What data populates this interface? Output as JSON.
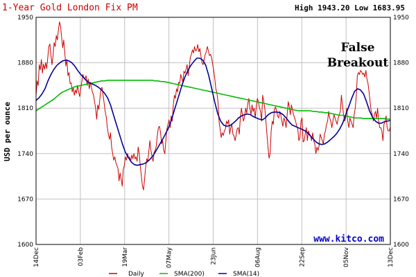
{
  "chart_data": {
    "type": "line",
    "title": "1-Year Gold London Fix PM",
    "high_low": "High 1943.20 Low 1683.95",
    "ylabel": "USD per ounce",
    "ylim": [
      1600,
      1950
    ],
    "yticks": [
      "1600",
      "1670",
      "1740",
      "1810",
      "1880",
      "1950"
    ],
    "xticks": [
      "14Dec",
      "03Feb",
      "19Mar",
      "07May",
      "23Jun",
      "06Aug",
      "22Sep",
      "05Nov",
      "13Dec"
    ],
    "annotation": [
      "False",
      "Breakout"
    ],
    "watermark": "www.kitco.com",
    "colors": {
      "daily": "#cc0000",
      "sma200": "#00bb00",
      "sma14": "#000099",
      "grid": "#c0c0c0",
      "title": "#cc0000"
    },
    "series": [
      {
        "name": "Daily",
        "values": [
          1829,
          1852,
          1845,
          1877,
          1869,
          1885,
          1864,
          1878,
          1870,
          1880,
          1871,
          1888,
          1905,
          1909,
          1891,
          1877,
          1892,
          1911,
          1905,
          1922,
          1915,
          1930,
          1943,
          1937,
          1920,
          1903,
          1915,
          1896,
          1875,
          1885,
          1860,
          1865,
          1848,
          1849,
          1835,
          1842,
          1830,
          1838,
          1833,
          1845,
          1835,
          1828,
          1840,
          1851,
          1862,
          1857,
          1855,
          1860,
          1845,
          1855,
          1840,
          1850,
          1842,
          1835,
          1830,
          1820,
          1810,
          1793,
          1815,
          1808,
          1825,
          1840,
          1842,
          1830,
          1818,
          1805,
          1796,
          1780,
          1770,
          1762,
          1772,
          1750,
          1740,
          1730,
          1735,
          1726,
          1722,
          1717,
          1698,
          1710,
          1700,
          1690,
          1716,
          1722,
          1735,
          1730,
          1740,
          1733,
          1735,
          1728,
          1738,
          1732,
          1740,
          1732,
          1735,
          1728,
          1750,
          1740,
          1720,
          1705,
          1690,
          1684,
          1700,
          1720,
          1732,
          1728,
          1744,
          1760,
          1745,
          1735,
          1728,
          1742,
          1745,
          1752,
          1768,
          1780,
          1782,
          1773,
          1755,
          1760,
          1745,
          1740,
          1760,
          1778,
          1785,
          1792,
          1780,
          1798,
          1790,
          1815,
          1830,
          1825,
          1840,
          1835,
          1850,
          1848,
          1862,
          1856,
          1850,
          1867,
          1864,
          1870,
          1877,
          1860,
          1875,
          1888,
          1893,
          1900,
          1895,
          1905,
          1898,
          1900,
          1908,
          1897,
          1902,
          1890,
          1880,
          1877,
          1885,
          1893,
          1897,
          1905,
          1898,
          1891,
          1893,
          1888,
          1878,
          1868,
          1855,
          1840,
          1833,
          1820,
          1790,
          1778,
          1765,
          1772,
          1768,
          1775,
          1778,
          1790,
          1786,
          1792,
          1770,
          1780,
          1785,
          1770,
          1768,
          1760,
          1768,
          1778,
          1780,
          1770,
          1795,
          1810,
          1800,
          1790,
          1797,
          1810,
          1802,
          1817,
          1825,
          1810,
          1800,
          1815,
          1805,
          1810,
          1795,
          1812,
          1825,
          1820,
          1810,
          1805,
          1790,
          1830,
          1820,
          1810,
          1790,
          1770,
          1750,
          1733,
          1740,
          1775,
          1790,
          1785,
          1808,
          1812,
          1806,
          1798,
          1795,
          1805,
          1800,
          1790,
          1782,
          1795,
          1790,
          1780,
          1800,
          1820,
          1812,
          1800,
          1815,
          1808,
          1800,
          1795,
          1790,
          1782,
          1778,
          1760,
          1765,
          1790,
          1795,
          1758,
          1760,
          1770,
          1780,
          1760,
          1775,
          1770,
          1768,
          1760,
          1772,
          1760,
          1755,
          1740,
          1750,
          1745,
          1752,
          1770,
          1765,
          1760,
          1755,
          1770,
          1775,
          1785,
          1790,
          1805,
          1795,
          1790,
          1780,
          1790,
          1800,
          1795,
          1790,
          1785,
          1795,
          1800,
          1805,
          1830,
          1815,
          1800,
          1790,
          1795,
          1810,
          1790,
          1780,
          1795,
          1790,
          1785,
          1780,
          1800,
          1810,
          1830,
          1860,
          1865,
          1862,
          1868,
          1866,
          1862,
          1864,
          1858,
          1868,
          1855,
          1848,
          1835,
          1820,
          1805,
          1800,
          1790,
          1800,
          1805,
          1795,
          1810,
          1790,
          1780,
          1780,
          1775,
          1760,
          1785,
          1790,
          1798,
          1780,
          1775,
          1775,
          1781
        ]
      },
      {
        "name": "SMA(200)",
        "values": [
          1806,
          1809,
          1812,
          1815,
          1818,
          1821,
          1824,
          1828,
          1832,
          1835,
          1837,
          1839,
          1841,
          1843,
          1844,
          1845,
          1846,
          1847,
          1848,
          1849,
          1850,
          1851,
          1852,
          1852,
          1853,
          1853,
          1853,
          1853,
          1853,
          1853,
          1853,
          1853,
          1853,
          1853,
          1853,
          1853,
          1853,
          1853,
          1853,
          1853,
          1852,
          1852,
          1851,
          1851,
          1850,
          1849,
          1848,
          1847,
          1846,
          1845,
          1844,
          1843,
          1842,
          1841,
          1840,
          1839,
          1838,
          1837,
          1836,
          1835,
          1834,
          1833,
          1832,
          1831,
          1830,
          1829,
          1828,
          1827,
          1826,
          1825,
          1824,
          1823,
          1822,
          1821,
          1820,
          1819,
          1818,
          1817,
          1816,
          1815,
          1814,
          1813,
          1812,
          1811,
          1810,
          1809,
          1808,
          1807,
          1806,
          1806,
          1806,
          1806,
          1806,
          1805,
          1805,
          1804,
          1804,
          1803,
          1803,
          1802,
          1801,
          1800,
          1799,
          1799,
          1798,
          1797,
          1796,
          1795,
          1795,
          1795,
          1794,
          1794,
          1794,
          1794,
          1794,
          1794,
          1794,
          1794,
          1793,
          1793
        ]
      },
      {
        "name": "SMA(14)",
        "values": [
          1822,
          1826,
          1832,
          1840,
          1852,
          1862,
          1870,
          1876,
          1880,
          1883,
          1884,
          1883,
          1880,
          1875,
          1868,
          1862,
          1857,
          1852,
          1849,
          1847,
          1845,
          1842,
          1838,
          1833,
          1826,
          1815,
          1800,
          1785,
          1770,
          1755,
          1742,
          1734,
          1727,
          1723,
          1722,
          1723,
          1724,
          1726,
          1730,
          1735,
          1742,
          1750,
          1758,
          1766,
          1775,
          1785,
          1800,
          1815,
          1830,
          1845,
          1858,
          1868,
          1876,
          1882,
          1887,
          1887,
          1884,
          1876,
          1860,
          1840,
          1820,
          1802,
          1790,
          1784,
          1782,
          1783,
          1786,
          1790,
          1795,
          1798,
          1800,
          1801,
          1800,
          1797,
          1795,
          1793,
          1792,
          1795,
          1800,
          1803,
          1804,
          1804,
          1803,
          1800,
          1795,
          1789,
          1784,
          1782,
          1780,
          1778,
          1776,
          1773,
          1768,
          1763,
          1758,
          1755,
          1754,
          1755,
          1758,
          1762,
          1766,
          1771,
          1778,
          1787,
          1800,
          1812,
          1825,
          1836,
          1840,
          1838,
          1832,
          1820,
          1806,
          1796,
          1790,
          1787,
          1787,
          1789,
          1790,
          1791
        ]
      }
    ]
  }
}
